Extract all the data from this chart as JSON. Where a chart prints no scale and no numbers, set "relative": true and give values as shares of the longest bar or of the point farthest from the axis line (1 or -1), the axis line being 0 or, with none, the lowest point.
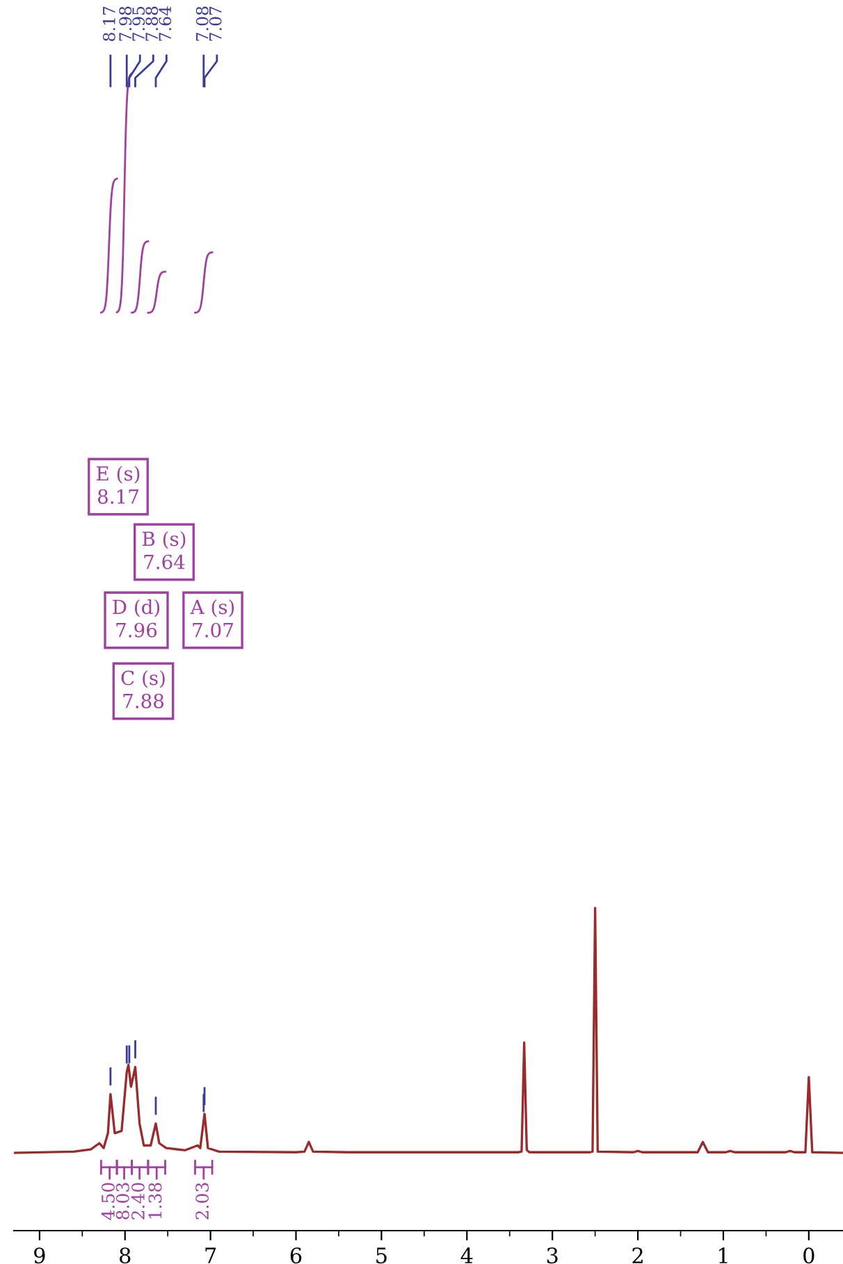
{
  "chart_data": {
    "type": "line",
    "relative": true,
    "xlim": [
      9.3,
      -0.4
    ],
    "xticks": [
      9,
      8,
      7,
      6,
      5,
      4,
      3,
      2,
      1,
      0
    ],
    "tick_labels": "x",
    "grid": false,
    "x": [
      9.3,
      8.6,
      8.4,
      8.3,
      8.25,
      8.2,
      8.17,
      8.12,
      8.04,
      7.98,
      7.96,
      7.93,
      7.88,
      7.83,
      7.78,
      7.7,
      7.64,
      7.6,
      7.52,
      7.3,
      7.15,
      7.12,
      7.07,
      7.03,
      6.9,
      6.0,
      5.9,
      5.85,
      5.8,
      5.4,
      3.4,
      3.36,
      3.33,
      3.3,
      3.27,
      2.56,
      2.53,
      2.5,
      2.47,
      2.05,
      2.0,
      1.95,
      1.3,
      1.24,
      1.18,
      0.97,
      0.92,
      0.87,
      0.27,
      0.22,
      0.17,
      0.04,
      0.0,
      -0.04,
      -0.4
    ],
    "series": [
      {
        "color": "#9b2a2a",
        "values": [
          0.241,
          0.245,
          0.252,
          0.271,
          0.256,
          0.302,
          0.423,
          0.302,
          0.309,
          0.491,
          0.514,
          0.446,
          0.507,
          0.332,
          0.264,
          0.264,
          0.332,
          0.271,
          0.256,
          0.249,
          0.264,
          0.256,
          0.362,
          0.256,
          0.245,
          0.243,
          0.245,
          0.275,
          0.245,
          0.243,
          0.243,
          0.245,
          0.583,
          0.25,
          0.243,
          0.243,
          0.245,
          1.0,
          0.245,
          0.243,
          0.247,
          0.243,
          0.243,
          0.275,
          0.243,
          0.243,
          0.247,
          0.243,
          0.243,
          0.247,
          0.243,
          0.243,
          0.476,
          0.243,
          0.241
        ]
      }
    ],
    "annotations": [
      "8.17",
      "7.98",
      "7.95",
      "7.88",
      "7.64",
      "7.08",
      "7.07",
      "E (s)\n8.17",
      "B (s)\n7.64",
      "D (d)\n7.96",
      "A (s)\n7.07",
      "C (s)\n7.88",
      {
        "text": "4.50",
        "x": 8.18
      },
      {
        "text": "8.03",
        "x": 8.01
      },
      {
        "text": "2.40",
        "x": 7.83
      },
      {
        "text": "1.38",
        "x": 7.63
      },
      {
        "text": "2.03",
        "x": 7.08
      }
    ]
  }
}
